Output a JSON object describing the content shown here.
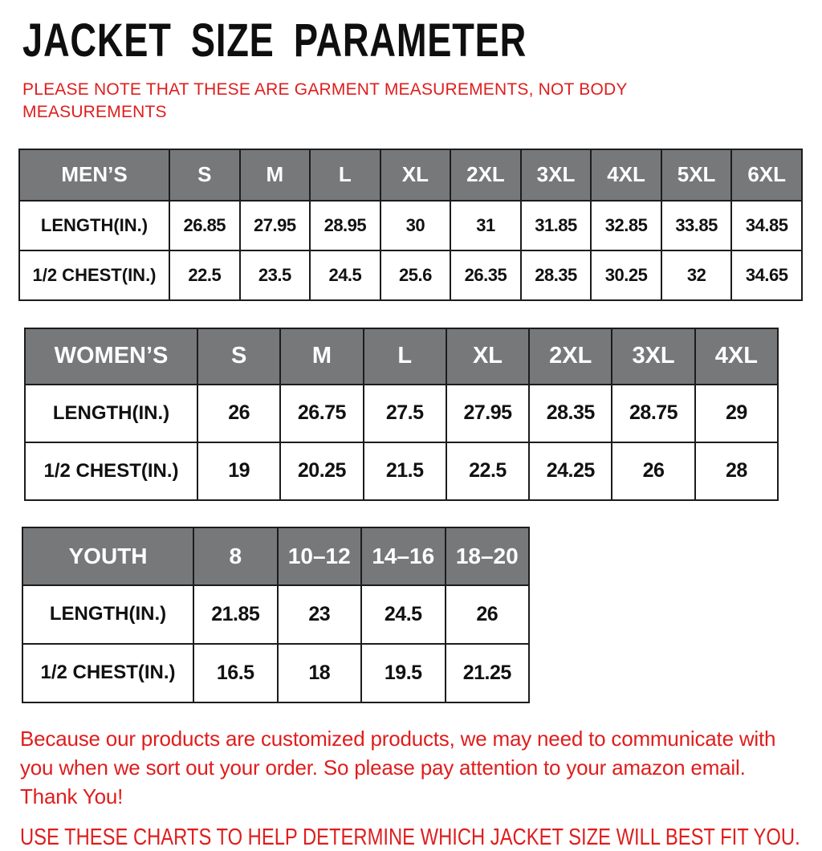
{
  "page": {
    "title": "JACKET SIZE PARAMETER",
    "note": "PLEASE NOTE THAT THESE ARE GARMENT MEASUREMENTS, NOT BODY MEASUREMENTS",
    "footer_note": "Because our products are customized products, we may need to communicate with you when we sort out your order. So please pay attention to your amazon email. Thank You!",
    "fit_note": "USE THESE CHARTS TO HELP DETERMINE WHICH JACKET SIZE WILL BEST FIT YOU."
  },
  "colors": {
    "note_red": "#e01d1d",
    "header_gray": "#77787a",
    "border_dark": "#1c1c1c",
    "title_black": "#0f0f0f"
  },
  "tables": {
    "mens": {
      "header": [
        "MEN’S",
        "S",
        "M",
        "L",
        "XL",
        "2XL",
        "3XL",
        "4XL",
        "5XL",
        "6XL"
      ],
      "rows": [
        {
          "label": "LENGTH(IN.)",
          "values": [
            "26.85",
            "27.95",
            "28.95",
            "30",
            "31",
            "31.85",
            "32.85",
            "33.85",
            "34.85"
          ]
        },
        {
          "label": "1/2 CHEST(IN.)",
          "values": [
            "22.5",
            "23.5",
            "24.5",
            "25.6",
            "26.35",
            "28.35",
            "30.25",
            "32",
            "34.65"
          ]
        }
      ]
    },
    "womens": {
      "header": [
        "WOMEN’S",
        "S",
        "M",
        "L",
        "XL",
        "2XL",
        "3XL",
        "4XL"
      ],
      "rows": [
        {
          "label": "LENGTH(IN.)",
          "values": [
            "26",
            "26.75",
            "27.5",
            "27.95",
            "28.35",
            "28.75",
            "29"
          ]
        },
        {
          "label": "1/2 CHEST(IN.)",
          "values": [
            "19",
            "20.25",
            "21.5",
            "22.5",
            "24.25",
            "26",
            "28"
          ]
        }
      ]
    },
    "youth": {
      "header": [
        "YOUTH",
        "8",
        "10–12",
        "14–16",
        "18–20"
      ],
      "rows": [
        {
          "label": "LENGTH(IN.)",
          "values": [
            "21.85",
            "23",
            "24.5",
            "26"
          ]
        },
        {
          "label": "1/2 CHEST(IN.)",
          "values": [
            "16.5",
            "18",
            "19.5",
            "21.25"
          ]
        }
      ]
    }
  }
}
